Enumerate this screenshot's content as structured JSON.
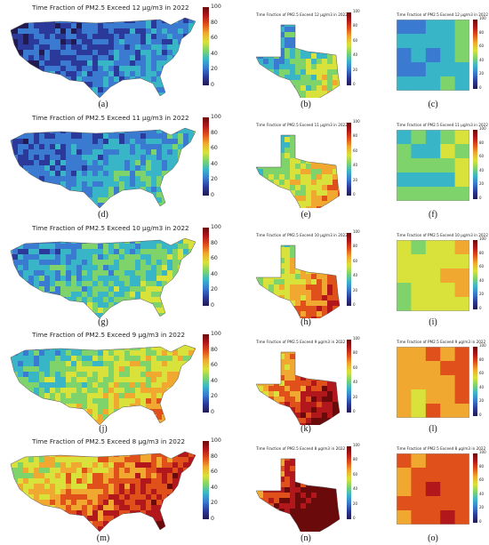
{
  "colorbar": {
    "ticks": [
      "100",
      "80",
      "60",
      "40",
      "20",
      "0"
    ],
    "colors": [
      "#6a0a0a",
      "#b2181b",
      "#e0501a",
      "#f0a830",
      "#d9e23a",
      "#7fd36b",
      "#38b6c8",
      "#3a7ad0",
      "#2b3a9a",
      "#241a52"
    ]
  },
  "rows": [
    {
      "us": {
        "title": "Time Fraction of PM2.5 Exceed 12 μg/m3 in 2022",
        "label": "(a)",
        "level": 0.05
      },
      "tx": {
        "title": "Time Fraction of PM2.5 Exceed 12 μg/m3 in 2022",
        "label": "(b)",
        "level": 0.2
      },
      "grid": {
        "title": "Time Fraction of PM2.5 Exceed 12 μg/m3 in 2022",
        "label": "(c)",
        "level": 0.3
      }
    },
    {
      "us": {
        "title": "Time Fraction of PM2.5 Exceed 11 μg/m3 in 2022",
        "label": "(d)",
        "level": 0.1
      },
      "tx": {
        "title": "Time Fraction of PM2.5 Exceed 11 μg/m3 in 2022",
        "label": "(e)",
        "level": 0.28
      },
      "grid": {
        "title": "Time Fraction of PM2.5 Exceed 11 μg/m3 in 2022",
        "label": "(f)",
        "level": 0.38
      }
    },
    {
      "us": {
        "title": "Time Fraction of PM2.5 Exceed 10 μg/m3 in 2022",
        "label": "(g)",
        "level": 0.18
      },
      "tx": {
        "title": "Time Fraction of PM2.5 Exceed 10 μg/m3 in 2022",
        "label": "(h)",
        "level": 0.36
      },
      "grid": {
        "title": "Time Fraction of PM2.5 Exceed 10 μg/m3 in 2022",
        "label": "(i)",
        "level": 0.5
      }
    },
    {
      "us": {
        "title": "Time Fraction of PM2.5 Exceed 9 μg/m3 in 2022",
        "label": "(j)",
        "level": 0.28
      },
      "tx": {
        "title": "Time Fraction of PM2.5 Exceed 9 μg/m3 in 2022",
        "label": "(k)",
        "level": 0.48
      },
      "grid": {
        "title": "Time Fraction of PM2.5 Exceed 9 μg/m3 in 2022",
        "label": "(l)",
        "level": 0.64
      }
    },
    {
      "us": {
        "title": "Time Fraction of PM2.5 Exceed 8 μg/m3 in 2022",
        "label": "(m)",
        "level": 0.45
      },
      "tx": {
        "title": "Time Fraction of PM2.5 Exceed 8 μg/m3 in 2022",
        "label": "(n)",
        "level": 0.6
      },
      "grid": {
        "title": "Time Fraction of PM2.5 Exceed 8 μg/m3 in 2022",
        "label": "(o)",
        "level": 0.72
      }
    }
  ]
}
